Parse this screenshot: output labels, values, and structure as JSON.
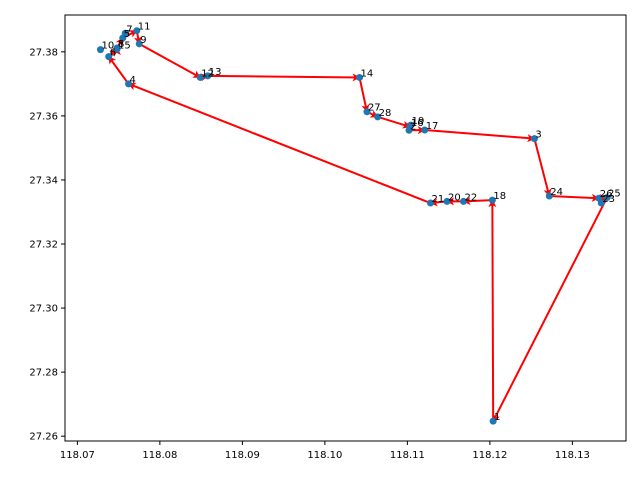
{
  "chart_data": {
    "type": "scatter",
    "title": "",
    "xlabel": "",
    "ylabel": "",
    "xlim": [
      118.0685,
      118.1365
    ],
    "ylim": [
      27.2585,
      27.3915
    ],
    "x_ticks": [
      118.07,
      118.08,
      118.09,
      118.1,
      118.11,
      118.12,
      118.13
    ],
    "x_tick_labels": [
      "118.07",
      "118.08",
      "118.09",
      "118.10",
      "118.11",
      "118.12",
      "118.13"
    ],
    "y_ticks": [
      27.26,
      27.28,
      27.3,
      27.32,
      27.34,
      27.36,
      27.38
    ],
    "y_tick_labels": [
      "27.26",
      "27.28",
      "27.30",
      "27.32",
      "27.34",
      "27.36",
      "27.38"
    ],
    "grid": false,
    "point_color": "#1f77b4",
    "arrow_color": "#ff0000",
    "points": [
      {
        "label": "1",
        "x": 118.1204,
        "y": 27.2647
      },
      {
        "label": "2",
        "x": 118.1102,
        "y": 27.3555
      },
      {
        "label": "3",
        "x": 118.1254,
        "y": 27.3529
      },
      {
        "label": "4",
        "x": 118.0762,
        "y": 27.37
      },
      {
        "label": "5",
        "x": 118.0755,
        "y": 27.3843
      },
      {
        "label": "6",
        "x": 118.0738,
        "y": 27.3785
      },
      {
        "label": "7",
        "x": 118.0758,
        "y": 27.3858
      },
      {
        "label": "8",
        "x": 118.0748,
        "y": 27.3812
      },
      {
        "label": "9",
        "x": 118.0775,
        "y": 27.3825
      },
      {
        "label": "10",
        "x": 118.0728,
        "y": 27.3807
      },
      {
        "label": "11",
        "x": 118.0772,
        "y": 27.3866
      },
      {
        "label": "12",
        "x": 118.0849,
        "y": 27.372
      },
      {
        "label": "13",
        "x": 118.0858,
        "y": 27.3725
      },
      {
        "label": "14",
        "x": 118.1042,
        "y": 27.372
      },
      {
        "label": "15",
        "x": 118.0748,
        "y": 27.3808
      },
      {
        "label": "16",
        "x": 118.1103,
        "y": 27.3566
      },
      {
        "label": "17",
        "x": 118.1121,
        "y": 27.3556
      },
      {
        "label": "18",
        "x": 118.1203,
        "y": 27.3337
      },
      {
        "label": "19",
        "x": 118.1104,
        "y": 27.3571
      },
      {
        "label": "20",
        "x": 118.1148,
        "y": 27.3333
      },
      {
        "label": "21",
        "x": 118.1128,
        "y": 27.3328
      },
      {
        "label": "22",
        "x": 118.1168,
        "y": 27.3333
      },
      {
        "label": "23",
        "x": 118.1335,
        "y": 27.3328
      },
      {
        "label": "24",
        "x": 118.1272,
        "y": 27.335
      },
      {
        "label": "25",
        "x": 118.1342,
        "y": 27.3345
      },
      {
        "label": "26",
        "x": 118.1332,
        "y": 27.3343
      },
      {
        "label": "27",
        "x": 118.1051,
        "y": 27.3613
      },
      {
        "label": "28",
        "x": 118.1064,
        "y": 27.3597
      }
    ],
    "path": [
      "1",
      "18",
      "22",
      "20",
      "21",
      "4",
      "6",
      "15",
      "8",
      "5",
      "11",
      "9",
      "12",
      "13",
      "14",
      "27",
      "28",
      "16",
      "2",
      "17",
      "3",
      "24",
      "26",
      "25",
      "1"
    ]
  }
}
